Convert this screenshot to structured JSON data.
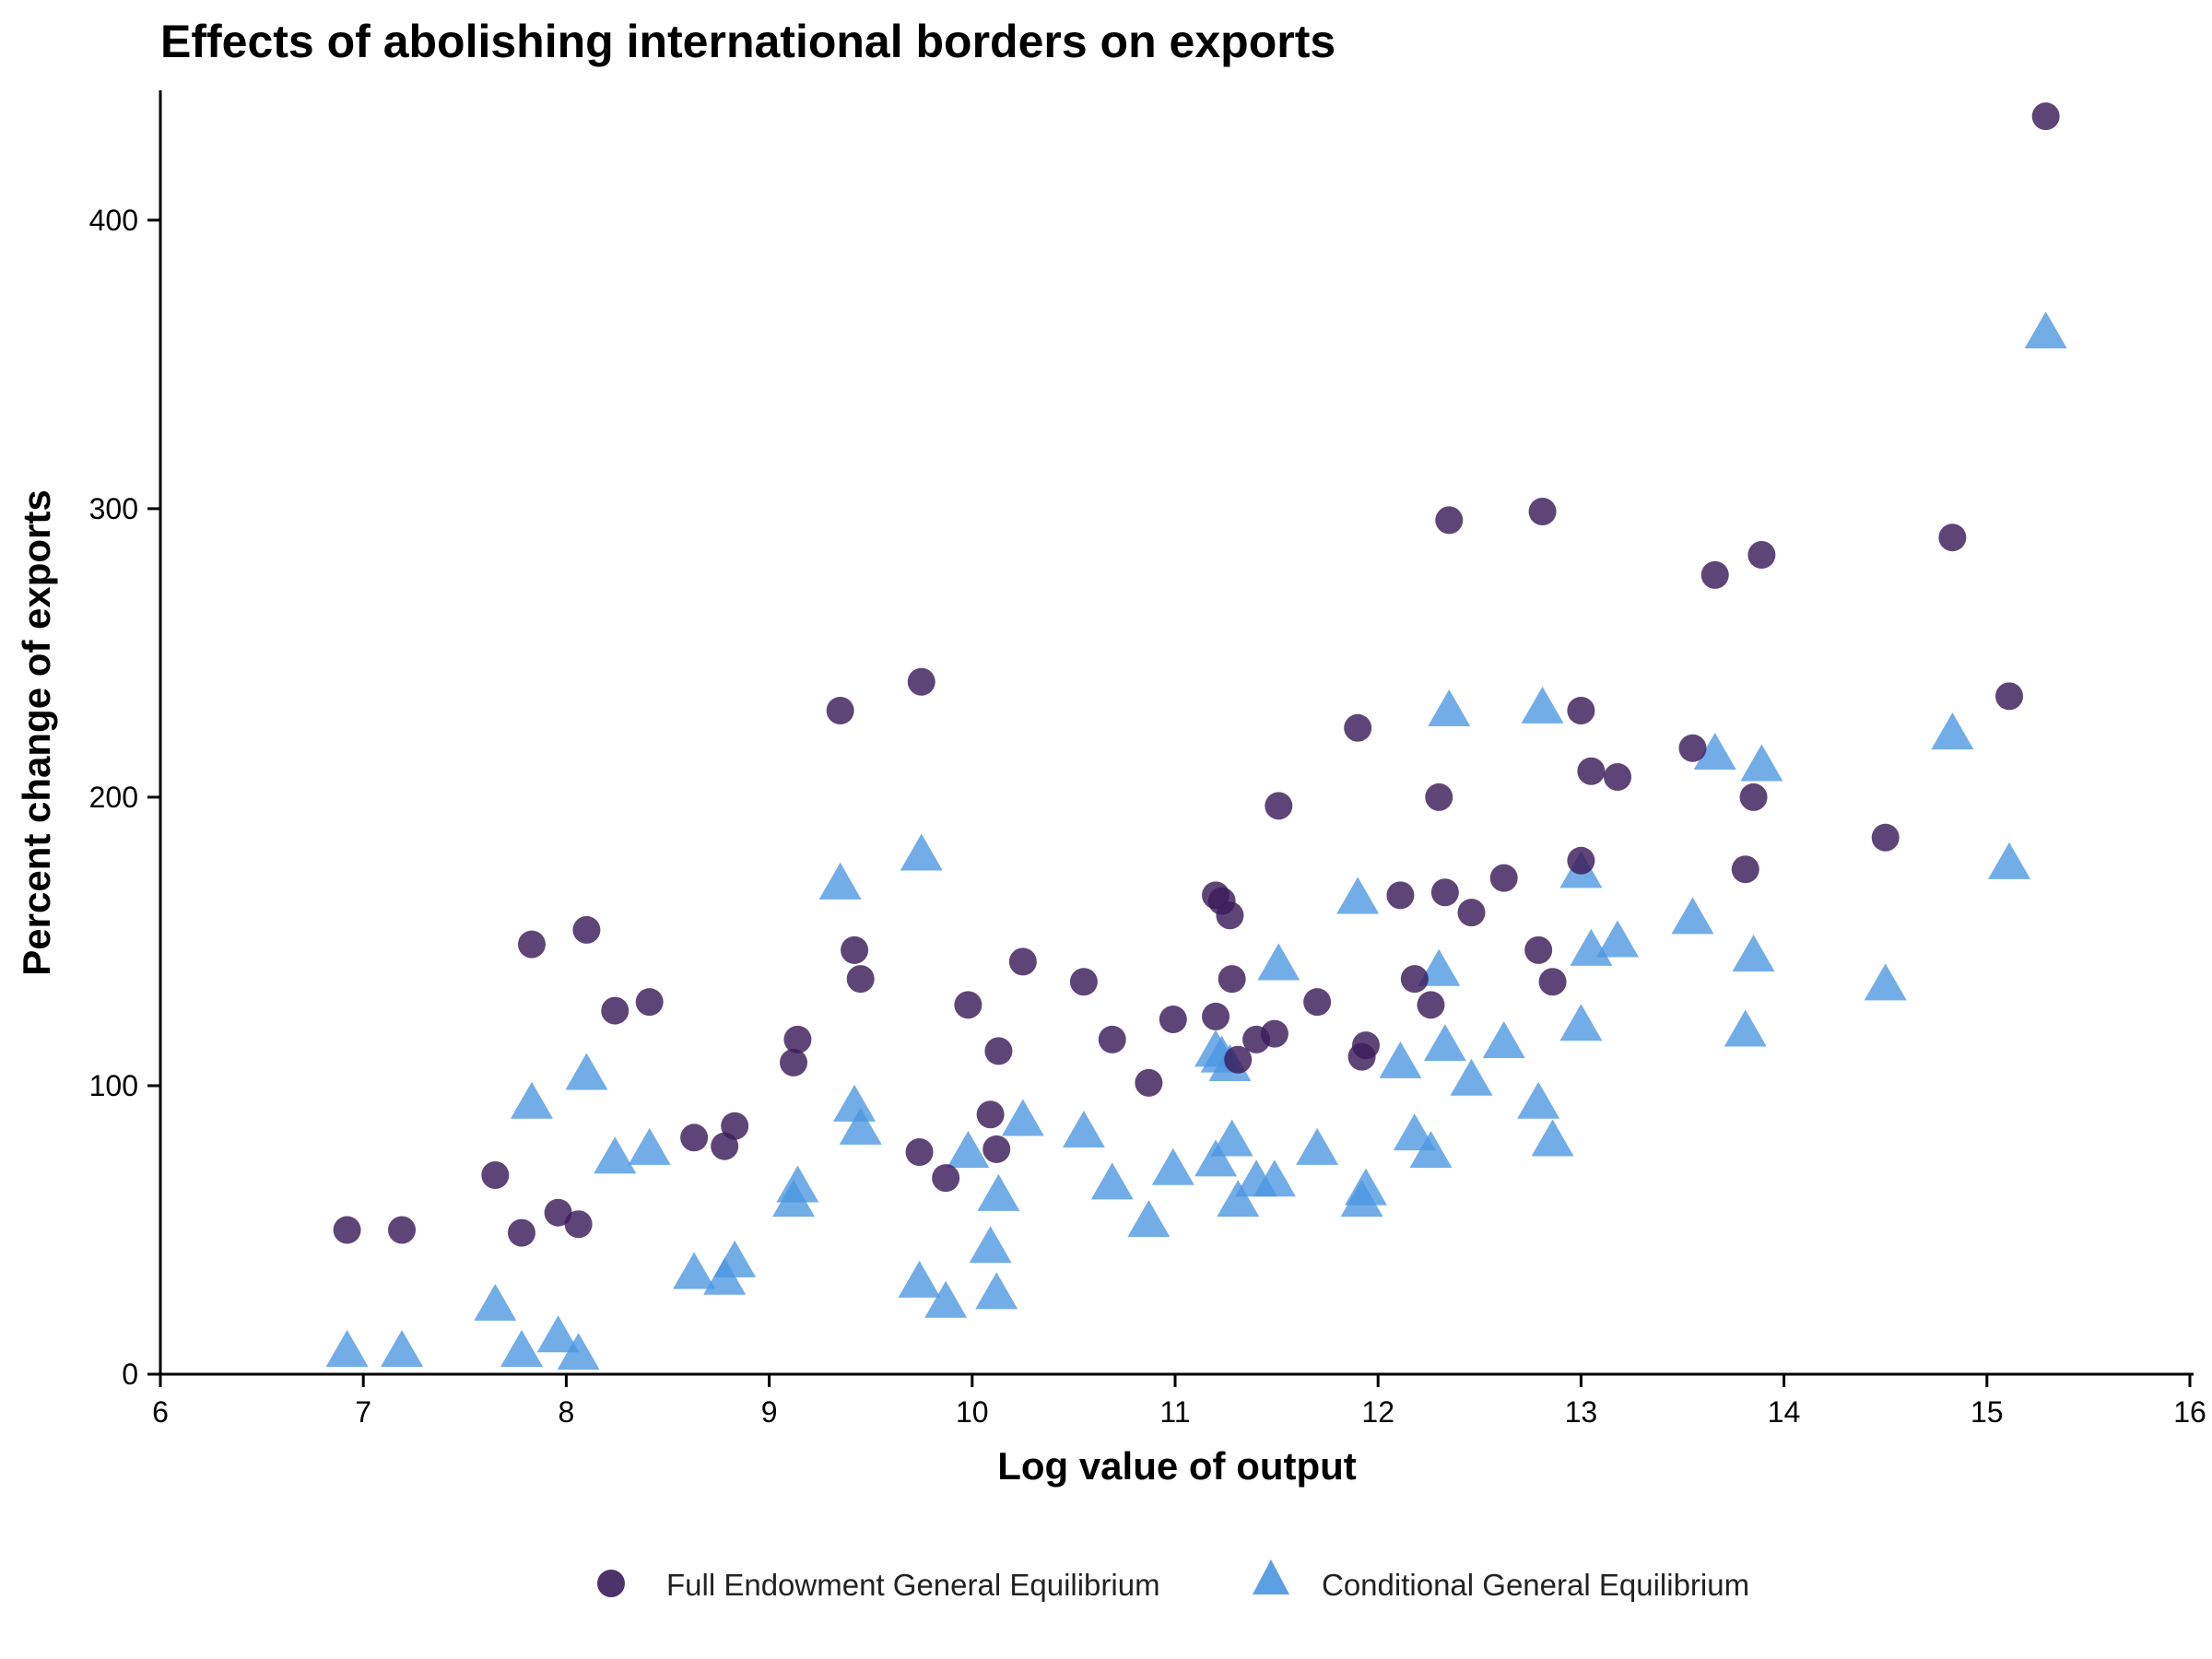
{
  "chart_data": {
    "type": "scatter",
    "title": "Effects of abolishing international borders on exports",
    "xlabel": "Log value of output",
    "ylabel": "Percent change of exports",
    "xlim": [
      6,
      16
    ],
    "ylim": [
      0,
      445
    ],
    "xticks": [
      6,
      7,
      8,
      9,
      10,
      11,
      12,
      13,
      14,
      15,
      16
    ],
    "yticks": [
      0,
      100,
      200,
      300,
      400
    ],
    "grid": false,
    "legend_position": "bottom",
    "series": [
      {
        "name": "Full Endowment General Equilibrium",
        "marker": "circle",
        "color": "#3b1c5a",
        "points": [
          [
            6.92,
            50
          ],
          [
            7.19,
            50
          ],
          [
            7.65,
            69
          ],
          [
            7.78,
            49
          ],
          [
            7.83,
            149
          ],
          [
            7.96,
            56
          ],
          [
            8.06,
            52
          ],
          [
            8.1,
            154
          ],
          [
            8.24,
            126
          ],
          [
            8.41,
            129
          ],
          [
            8.63,
            82
          ],
          [
            8.78,
            79
          ],
          [
            8.83,
            86
          ],
          [
            9.12,
            108
          ],
          [
            9.14,
            116
          ],
          [
            9.35,
            230
          ],
          [
            9.42,
            147
          ],
          [
            9.45,
            137
          ],
          [
            9.74,
            77
          ],
          [
            9.75,
            240
          ],
          [
            9.87,
            68
          ],
          [
            9.98,
            128
          ],
          [
            10.09,
            90
          ],
          [
            10.12,
            78
          ],
          [
            10.13,
            112
          ],
          [
            10.25,
            143
          ],
          [
            10.55,
            136
          ],
          [
            10.69,
            116
          ],
          [
            10.87,
            101
          ],
          [
            10.99,
            123
          ],
          [
            11.2,
            166
          ],
          [
            11.2,
            124
          ],
          [
            11.23,
            164
          ],
          [
            11.27,
            159
          ],
          [
            11.28,
            137
          ],
          [
            11.31,
            109
          ],
          [
            11.4,
            116
          ],
          [
            11.49,
            118
          ],
          [
            11.51,
            197
          ],
          [
            11.7,
            129
          ],
          [
            11.9,
            224
          ],
          [
            11.92,
            110
          ],
          [
            11.94,
            114
          ],
          [
            12.11,
            166
          ],
          [
            12.18,
            137
          ],
          [
            12.26,
            128
          ],
          [
            12.3,
            200
          ],
          [
            12.33,
            167
          ],
          [
            12.35,
            296
          ],
          [
            12.46,
            160
          ],
          [
            12.62,
            172
          ],
          [
            12.79,
            147
          ],
          [
            12.81,
            299
          ],
          [
            12.86,
            136
          ],
          [
            13.0,
            230
          ],
          [
            13.0,
            178
          ],
          [
            13.05,
            209
          ],
          [
            13.18,
            207
          ],
          [
            13.55,
            217
          ],
          [
            13.66,
            277
          ],
          [
            13.81,
            175
          ],
          [
            13.85,
            200
          ],
          [
            13.89,
            284
          ],
          [
            14.5,
            186
          ],
          [
            14.83,
            290
          ],
          [
            15.11,
            235
          ],
          [
            15.29,
            436
          ]
        ]
      },
      {
        "name": "Conditional General Equilibrium",
        "marker": "triangle",
        "color": "#4a96e0",
        "points": [
          [
            6.92,
            8
          ],
          [
            7.19,
            8
          ],
          [
            7.65,
            24
          ],
          [
            7.78,
            8
          ],
          [
            7.83,
            94
          ],
          [
            7.96,
            13
          ],
          [
            8.06,
            7
          ],
          [
            8.1,
            104
          ],
          [
            8.24,
            75
          ],
          [
            8.41,
            78
          ],
          [
            8.63,
            35
          ],
          [
            8.78,
            33
          ],
          [
            8.83,
            39
          ],
          [
            9.12,
            60
          ],
          [
            9.14,
            65
          ],
          [
            9.35,
            170
          ],
          [
            9.42,
            93
          ],
          [
            9.45,
            85
          ],
          [
            9.74,
            32
          ],
          [
            9.75,
            180
          ],
          [
            9.87,
            25
          ],
          [
            9.98,
            77
          ],
          [
            10.09,
            44
          ],
          [
            10.12,
            28
          ],
          [
            10.13,
            62
          ],
          [
            10.25,
            88
          ],
          [
            10.55,
            84
          ],
          [
            10.69,
            66
          ],
          [
            10.87,
            53
          ],
          [
            10.99,
            71
          ],
          [
            11.2,
            112
          ],
          [
            11.2,
            74
          ],
          [
            11.23,
            110
          ],
          [
            11.27,
            107
          ],
          [
            11.28,
            81
          ],
          [
            11.31,
            60
          ],
          [
            11.4,
            67
          ],
          [
            11.49,
            67
          ],
          [
            11.51,
            142
          ],
          [
            11.7,
            78
          ],
          [
            11.9,
            165
          ],
          [
            11.92,
            60
          ],
          [
            11.94,
            64
          ],
          [
            12.11,
            108
          ],
          [
            12.18,
            83
          ],
          [
            12.26,
            77
          ],
          [
            12.3,
            140
          ],
          [
            12.33,
            114
          ],
          [
            12.35,
            230
          ],
          [
            12.46,
            102
          ],
          [
            12.62,
            115
          ],
          [
            12.79,
            94
          ],
          [
            12.81,
            231
          ],
          [
            12.86,
            81
          ],
          [
            13.0,
            121
          ],
          [
            13.0,
            174
          ],
          [
            13.05,
            147
          ],
          [
            13.18,
            150
          ],
          [
            13.55,
            158
          ],
          [
            13.66,
            215
          ],
          [
            13.81,
            119
          ],
          [
            13.85,
            145
          ],
          [
            13.89,
            211
          ],
          [
            14.5,
            135
          ],
          [
            14.83,
            222
          ],
          [
            15.11,
            177
          ],
          [
            15.29,
            361
          ]
        ]
      }
    ]
  }
}
